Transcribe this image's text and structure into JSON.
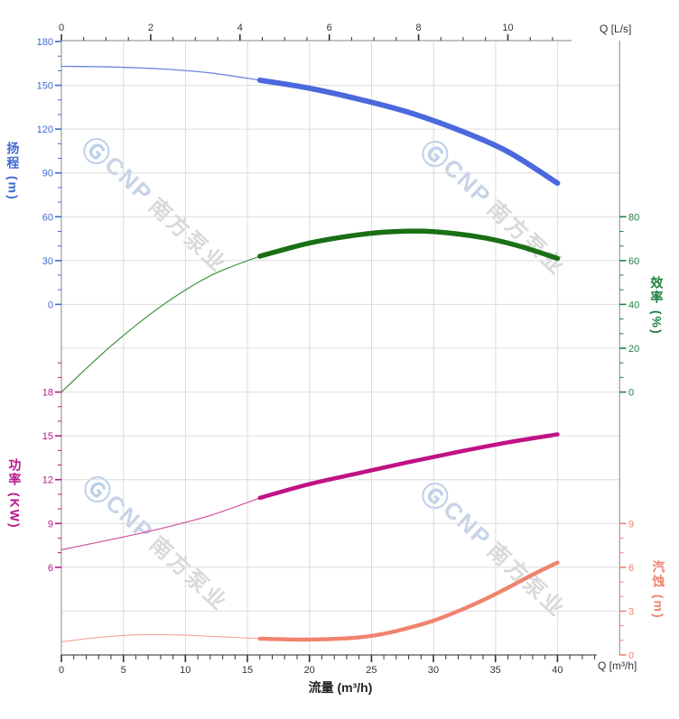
{
  "watermark": {
    "logo": "Ⓖ",
    "brand": "CNP",
    "brand_cn": "南方泵业",
    "logo_color": "#bcd0ea",
    "brand_color": "#c7d4e6",
    "cn_color": "#d9d9d9"
  },
  "axis_titles": {
    "flow_bottom": "流量 (m³/h)",
    "flow_top_unit": "Q [L/s]",
    "flow_bottom_unit": "Q [m³/h]",
    "head": "扬程 (m)",
    "power": "功率 (KW)",
    "efficiency": "效率 (%)",
    "npsh": "汽蚀 (m)"
  },
  "colors": {
    "head_axis": "#3f6ad0",
    "power_axis": "#b5188c",
    "efficiency_axis": "#1e8040",
    "npsh_axis": "#f0826e",
    "black_axis": "#333333",
    "grid": "#dcdcdc",
    "border": "#9e9e9e"
  },
  "chart_data": {
    "type": "line",
    "title": "",
    "x_axis_bottom": {
      "unit": "Q [m³/h]",
      "label": "流量 (m³/h)",
      "min": 0,
      "max": 45,
      "majors": [
        0,
        5,
        10,
        15,
        20,
        25,
        30,
        35,
        40
      ],
      "minors_between": 4,
      "tick_end": 43
    },
    "x_axis_top": {
      "unit": "Q [L/s]",
      "min": 0,
      "majors": [
        0,
        2,
        4,
        6,
        8,
        10
      ],
      "minors_between": 3,
      "tick_end": 11
    },
    "y_axes": {
      "head": {
        "label": "扬程 (m)",
        "majors": [
          180,
          150,
          120,
          90,
          60,
          30,
          0
        ],
        "minors_between": 2,
        "extra_minors": []
      },
      "power": {
        "label": "功率 (KW)",
        "majors": [
          18,
          15,
          12,
          9,
          6
        ],
        "minors_between": 2,
        "extra_minors": [
          19,
          20
        ]
      },
      "eff": {
        "label": "效率 (%)",
        "majors": [
          80,
          60,
          40,
          20,
          0
        ],
        "minors_between": 2,
        "extra_minors": []
      },
      "npsh": {
        "label": "汽蚀 (m)",
        "majors": [
          9,
          6,
          3,
          0
        ],
        "minors_between": 2,
        "extra_minors": []
      }
    },
    "series": [
      {
        "name": "head",
        "axis": "head",
        "split_q": 16,
        "color_thin": "#6e87de",
        "color": "#4b69dc",
        "width_thin": 1.3,
        "width": 6,
        "thin": [
          [
            0,
            163
          ],
          [
            4,
            162.6
          ],
          [
            8,
            161.2
          ],
          [
            12,
            158.5
          ],
          [
            16,
            153.5
          ]
        ],
        "thick": [
          [
            16,
            153.5
          ],
          [
            20,
            148
          ],
          [
            24,
            140.5
          ],
          [
            28,
            131.5
          ],
          [
            32,
            119.5
          ],
          [
            36,
            104.5
          ],
          [
            40,
            83
          ]
        ]
      },
      {
        "name": "efficiency",
        "axis": "eff",
        "split_q": 16,
        "color_thin": "#338a33",
        "color": "#1a6f15",
        "width_thin": 1.1,
        "width": 5.5,
        "thin": [
          [
            0,
            0
          ],
          [
            4,
            21
          ],
          [
            8,
            39
          ],
          [
            12,
            53
          ],
          [
            16,
            62
          ]
        ],
        "thick": [
          [
            16,
            62
          ],
          [
            20,
            68
          ],
          [
            24,
            71.8
          ],
          [
            27,
            73.3
          ],
          [
            30,
            73.2
          ],
          [
            34,
            70.5
          ],
          [
            37,
            66.5
          ],
          [
            40,
            61
          ]
        ]
      },
      {
        "name": "power",
        "axis": "power",
        "split_q": 16,
        "color_thin": "#d1519e",
        "color": "#c01285",
        "width_thin": 1.2,
        "width": 4.6,
        "thin": [
          [
            0,
            7.2
          ],
          [
            4,
            7.9
          ],
          [
            8,
            8.65
          ],
          [
            12,
            9.55
          ],
          [
            16,
            10.75
          ]
        ],
        "thick": [
          [
            16,
            10.75
          ],
          [
            20,
            11.7
          ],
          [
            24,
            12.45
          ],
          [
            28,
            13.2
          ],
          [
            32,
            13.9
          ],
          [
            36,
            14.55
          ],
          [
            40,
            15.1
          ]
        ]
      },
      {
        "name": "npsh",
        "axis": "npsh",
        "split_q": 16,
        "color_thin": "#f5a193",
        "color": "#f0826e",
        "width_thin": 1.1,
        "width": 4.4,
        "thin": [
          [
            0,
            0.9
          ],
          [
            3,
            1.2
          ],
          [
            6,
            1.38
          ],
          [
            9,
            1.38
          ],
          [
            12,
            1.28
          ],
          [
            16,
            1.12
          ]
        ],
        "thick": [
          [
            16,
            1.12
          ],
          [
            19,
            1.05
          ],
          [
            22,
            1.1
          ],
          [
            24,
            1.2
          ],
          [
            26,
            1.45
          ],
          [
            28,
            1.85
          ],
          [
            30,
            2.35
          ],
          [
            32,
            3.0
          ],
          [
            34,
            3.75
          ],
          [
            36,
            4.6
          ],
          [
            38,
            5.5
          ],
          [
            40,
            6.32
          ]
        ]
      }
    ]
  }
}
